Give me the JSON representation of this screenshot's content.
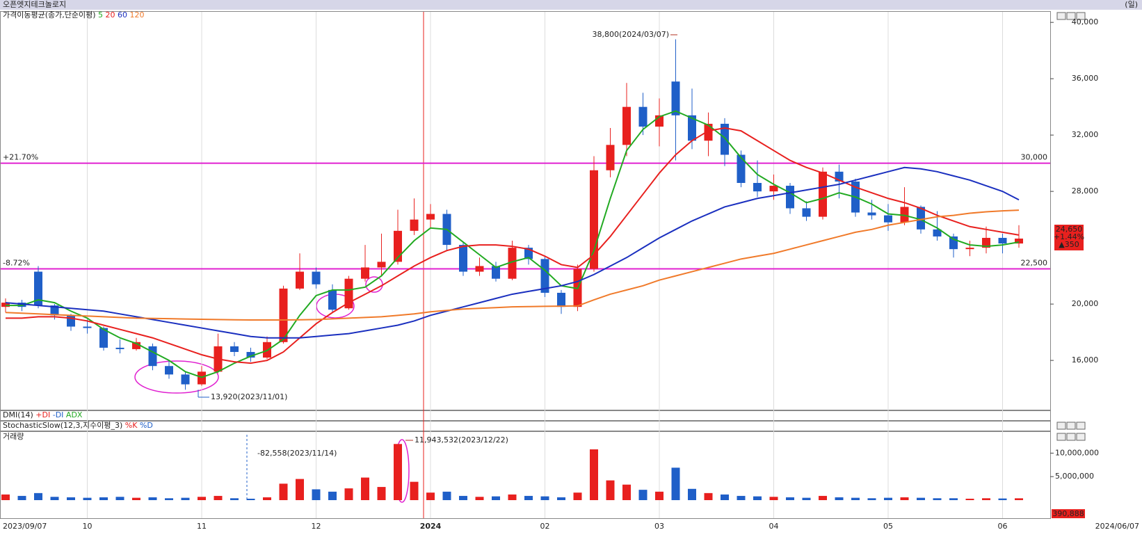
{
  "header": {
    "title": "오픈엣지테크놀로지",
    "period": "(일)"
  },
  "panels": [
    {
      "title": "DMI(14)",
      "items": [
        "+DI",
        "-DI",
        "ADX"
      ]
    },
    {
      "title": "StochasticSlow(12,3,지수이평_3)",
      "items": [
        "%K",
        "%D"
      ]
    }
  ],
  "price_box": {
    "price": "24,650",
    "change": "+1.44%",
    "diff": "▲350"
  },
  "volume_box": "390,888",
  "chart_data": [
    {
      "type": "candlestick",
      "legend_title": "가격이동평균(종가,단순이평)",
      "up_color": "#e8201e",
      "down_color": "#1f5fc8",
      "categories": [
        "2023/09/07",
        null,
        null,
        null,
        null,
        "10",
        null,
        null,
        null,
        null,
        null,
        null,
        "11",
        null,
        null,
        null,
        null,
        null,
        null,
        "12",
        null,
        null,
        null,
        null,
        null,
        null,
        "2024",
        null,
        null,
        null,
        null,
        null,
        null,
        "02",
        null,
        null,
        null,
        null,
        null,
        null,
        "03",
        null,
        null,
        null,
        null,
        null,
        null,
        "04",
        null,
        null,
        null,
        null,
        null,
        null,
        "05",
        null,
        null,
        null,
        null,
        null,
        null,
        "06",
        "2024/06/07"
      ],
      "open": [
        19800,
        20100,
        22300,
        19900,
        19200,
        18400,
        18300,
        16900,
        16800,
        17000,
        15600,
        15000,
        14300,
        15200,
        17000,
        16600,
        16200,
        17300,
        21100,
        22300,
        21000,
        19700,
        21800,
        22600,
        23000,
        25200,
        26000,
        26400,
        24200,
        22300,
        22700,
        21800,
        24000,
        23200,
        20800,
        19800,
        22500,
        29500,
        31300,
        34000,
        32600,
        35800,
        33400,
        31600,
        32800,
        30600,
        28600,
        28000,
        28400,
        26800,
        26200,
        29400,
        28700,
        26500,
        26300,
        25800,
        26900,
        25300,
        24800,
        23900,
        24000,
        24700,
        24300
      ],
      "high": [
        20400,
        20300,
        22700,
        20000,
        19300,
        18900,
        18400,
        17500,
        17600,
        17200,
        16000,
        15200,
        15600,
        17900,
        17300,
        16900,
        17700,
        21300,
        23600,
        22600,
        21400,
        22000,
        24200,
        25000,
        26700,
        27500,
        27100,
        26700,
        24400,
        23300,
        23000,
        24500,
        24200,
        23400,
        21000,
        22800,
        30500,
        32500,
        35700,
        35000,
        34600,
        38800,
        35300,
        33600,
        33200,
        30900,
        30200,
        29200,
        28600,
        27300,
        29700,
        29900,
        28900,
        27400,
        27100,
        28300,
        27000,
        26600,
        25000,
        24500,
        25500,
        25000,
        25600
      ],
      "low": [
        19400,
        19500,
        19700,
        18900,
        18100,
        17900,
        16700,
        16500,
        16700,
        15300,
        14700,
        13920,
        14200,
        15100,
        16300,
        15900,
        16100,
        17200,
        21000,
        21100,
        19400,
        19600,
        21600,
        22000,
        22800,
        24900,
        25400,
        23800,
        22000,
        22000,
        21600,
        21700,
        22800,
        20500,
        19300,
        19500,
        22300,
        29000,
        30500,
        32000,
        31200,
        30200,
        31000,
        30500,
        29800,
        28300,
        27600,
        27400,
        26400,
        25900,
        26000,
        27500,
        26200,
        26000,
        25200,
        25600,
        25000,
        24500,
        23300,
        23400,
        23600,
        23600,
        24000
      ],
      "close": [
        20100,
        19800,
        19900,
        19200,
        18400,
        18300,
        16900,
        16800,
        17300,
        15600,
        15000,
        14300,
        15200,
        17000,
        16600,
        16200,
        17300,
        21100,
        22300,
        21400,
        19600,
        21800,
        22600,
        23000,
        25200,
        26000,
        26400,
        24200,
        22300,
        22700,
        21800,
        24000,
        23200,
        20800,
        19800,
        22500,
        29500,
        31300,
        34000,
        32600,
        33400,
        33400,
        31600,
        32800,
        30600,
        28600,
        28000,
        28400,
        26800,
        26200,
        29400,
        28700,
        26500,
        26300,
        25800,
        26900,
        25300,
        24800,
        23900,
        24000,
        24700,
        24300,
        24650
      ],
      "series": [
        {
          "name": "5",
          "color": "#22aa22",
          "values": [
            19900,
            19900,
            20300,
            20100,
            19500,
            19000,
            18200,
            17600,
            17200,
            16600,
            16000,
            15200,
            14800,
            15200,
            15800,
            16300,
            16700,
            17500,
            19200,
            20600,
            21000,
            21000,
            21200,
            22000,
            23300,
            24500,
            25400,
            25300,
            24400,
            23500,
            22600,
            23000,
            23300,
            22400,
            21300,
            21100,
            23800,
            27500,
            30900,
            32400,
            33300,
            33700,
            33200,
            32700,
            31800,
            30400,
            29200,
            28500,
            27900,
            27200,
            27500,
            27900,
            27600,
            27100,
            26400,
            26300,
            26000,
            25400,
            24600,
            24200,
            24100,
            24200,
            24400
          ]
        },
        {
          "name": "20",
          "color": "#e8201e",
          "values": [
            19000,
            19000,
            19100,
            19100,
            19000,
            18800,
            18500,
            18200,
            17900,
            17600,
            17200,
            16800,
            16400,
            16100,
            15900,
            15800,
            16000,
            16600,
            17600,
            18600,
            19400,
            20100,
            20700,
            21300,
            22000,
            22700,
            23300,
            23800,
            24100,
            24200,
            24200,
            24100,
            23900,
            23400,
            22800,
            22600,
            23500,
            24800,
            26300,
            27800,
            29300,
            30600,
            31600,
            32300,
            32500,
            32300,
            31600,
            30900,
            30200,
            29700,
            29300,
            28800,
            28300,
            27900,
            27500,
            27200,
            26800,
            26300,
            25900,
            25500,
            25300,
            25100,
            24900
          ]
        },
        {
          "name": "60",
          "color": "#1a2fbf",
          "values": [
            20100,
            20000,
            19900,
            19800,
            19700,
            19600,
            19500,
            19300,
            19100,
            18900,
            18700,
            18500,
            18300,
            18100,
            17900,
            17700,
            17600,
            17600,
            17600,
            17700,
            17800,
            17900,
            18100,
            18300,
            18500,
            18800,
            19200,
            19500,
            19800,
            20100,
            20400,
            20700,
            20900,
            21100,
            21300,
            21600,
            22100,
            22700,
            23300,
            24000,
            24700,
            25300,
            25900,
            26400,
            26900,
            27200,
            27500,
            27700,
            27900,
            28100,
            28300,
            28500,
            28800,
            29100,
            29400,
            29700,
            29600,
            29400,
            29100,
            28800,
            28400,
            28000,
            27400
          ]
        },
        {
          "name": "120",
          "color": "#f07a2a",
          "values": [
            19400,
            19350,
            19300,
            19250,
            19200,
            19150,
            19100,
            19050,
            19000,
            18980,
            18960,
            18940,
            18920,
            18900,
            18880,
            18870,
            18870,
            18870,
            18880,
            18900,
            18950,
            19000,
            19050,
            19100,
            19200,
            19300,
            19450,
            19550,
            19650,
            19700,
            19750,
            19800,
            19820,
            19840,
            19850,
            19870,
            20300,
            20700,
            21000,
            21300,
            21700,
            22000,
            22300,
            22600,
            22900,
            23200,
            23400,
            23600,
            23900,
            24200,
            24500,
            24800,
            25100,
            25300,
            25600,
            25800,
            26000,
            26200,
            26300,
            26450,
            26550,
            26620,
            26670
          ]
        }
      ],
      "ylim": [
        12450,
        40700
      ],
      "yticks": [
        {
          "value": 16000,
          "label": "16,000"
        },
        {
          "value": 20000,
          "label": "20,000"
        },
        {
          "value": 28000,
          "label": "28,000"
        },
        {
          "value": 32000,
          "label": "32,000"
        },
        {
          "value": 36000,
          "label": "36,000"
        },
        {
          "value": 40000,
          "label": "40,000"
        }
      ],
      "levels": [
        {
          "value": 30000,
          "label": "30,000",
          "pct": "+21.70%",
          "color": "#e020d0"
        },
        {
          "value": 22500,
          "label": "22,500",
          "pct": "-8.72%",
          "color": "#e020d0"
        }
      ],
      "annotations": [
        "38,800(2024/03/07)",
        "13,920(2023/11/01)"
      ]
    },
    {
      "type": "bar",
      "title": "거래량",
      "values": [
        1200000,
        900000,
        1500000,
        700000,
        600000,
        500000,
        600000,
        700000,
        500000,
        600000,
        400000,
        500000,
        700000,
        900000,
        400000,
        300000,
        600000,
        3500000,
        4500000,
        2300000,
        1800000,
        2500000,
        4800000,
        2800000,
        11943532,
        3900000,
        1600000,
        1800000,
        900000,
        700000,
        800000,
        1200000,
        900000,
        800000,
        600000,
        1600000,
        10800000,
        4200000,
        3300000,
        2200000,
        1800000,
        6900000,
        2400000,
        1500000,
        1200000,
        900000,
        800000,
        700000,
        600000,
        500000,
        900000,
        600000,
        500000,
        400000,
        500000,
        600000,
        500000,
        400000,
        400000,
        300000,
        400000,
        350000,
        390888
      ],
      "ylim": [
        0,
        14500000
      ],
      "yticks": [
        {
          "value": 5000000,
          "label": "5,000,000"
        },
        {
          "value": 10000000,
          "label": "10,000,000"
        }
      ],
      "annotations": [
        "11,943,532(2023/12/22)",
        "-82,558(2023/11/14)"
      ]
    }
  ]
}
